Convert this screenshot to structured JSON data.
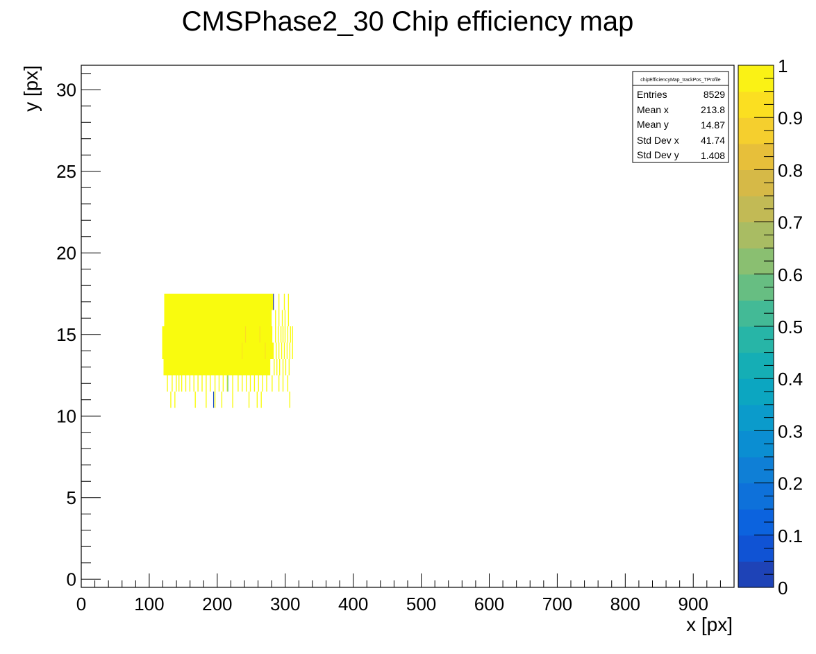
{
  "chart_data": {
    "type": "heatmap",
    "title": "CMSPhase2_30 Chip efficiency map",
    "xlabel": "x [px]",
    "ylabel": "y [px]",
    "xlim": [
      0,
      960
    ],
    "ylim": [
      -0.5,
      31.5
    ],
    "x_ticks": [
      0,
      100,
      200,
      300,
      400,
      500,
      600,
      700,
      800,
      900
    ],
    "y_ticks": [
      0,
      5,
      10,
      15,
      20,
      25,
      30
    ],
    "z_range": [
      0,
      1
    ],
    "z_ticks": [
      0,
      0.1,
      0.2,
      0.3,
      0.4,
      0.5,
      0.6,
      0.7,
      0.8,
      0.9,
      1
    ],
    "stats_box": {
      "name": "chipEfficiencyMap_trackPos_TProfile",
      "rows": [
        {
          "label": "Entries",
          "value": "8529"
        },
        {
          "label": "Mean x",
          "value": "213.8"
        },
        {
          "label": "Mean y",
          "value": "14.87"
        },
        {
          "label": "Std Dev x",
          "value": "41.74"
        },
        {
          "label": "Std Dev y",
          "value": "1.408"
        }
      ]
    },
    "cells": {
      "bin_width_x": 1,
      "bin_height_y": 1,
      "default_value": 1.0,
      "rows": [
        {
          "y": 17,
          "x_start": 122,
          "x_end": 282
        },
        {
          "y": 16,
          "x_start": 122,
          "x_end": 279
        },
        {
          "y": 15,
          "x_start": 119,
          "x_end": 280
        },
        {
          "y": 14,
          "x_start": 119,
          "x_end": 282
        },
        {
          "y": 13,
          "x_start": 121,
          "x_end": 277
        }
      ],
      "sparse_columns": [
        {
          "y": 17,
          "x": [
            290,
            298,
            304
          ]
        },
        {
          "y": 16,
          "x": [
            285,
            290,
            295,
            299,
            304
          ]
        },
        {
          "y": 15,
          "x": [
            285,
            289,
            293,
            296,
            299,
            303,
            307,
            310
          ]
        },
        {
          "y": 14,
          "x": [
            286,
            290,
            294,
            298,
            302,
            306,
            310
          ]
        },
        {
          "y": 13,
          "x": [
            283,
            287,
            291,
            296,
            300,
            305
          ]
        },
        {
          "y": 12,
          "x": [
            126,
            133,
            139,
            143,
            147,
            153,
            159,
            165,
            171,
            177,
            183,
            189,
            196,
            202,
            208,
            214,
            222,
            230,
            236,
            242,
            248,
            254,
            260,
            266,
            272,
            280,
            290,
            296,
            303
          ]
        },
        {
          "y": 11,
          "x": [
            131,
            137,
            167,
            183,
            196,
            206,
            222,
            246,
            258,
            264,
            306
          ]
        }
      ],
      "special": [
        {
          "x": 282,
          "y": 17,
          "value": 0.0
        },
        {
          "x": 194,
          "y": 11,
          "value": 0.05
        },
        {
          "x": 241,
          "y": 15,
          "value": 0.92
        },
        {
          "x": 262,
          "y": 15,
          "value": 0.92
        },
        {
          "x": 270,
          "y": 14,
          "value": 0.93
        },
        {
          "x": 236,
          "y": 14,
          "value": 0.93
        },
        {
          "x": 215,
          "y": 12,
          "value": 0.55
        }
      ]
    }
  }
}
